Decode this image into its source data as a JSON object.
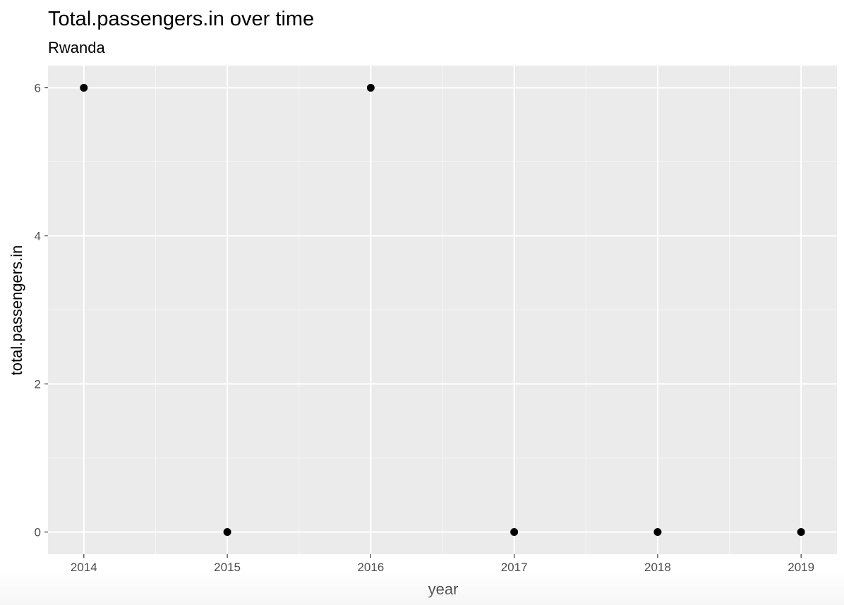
{
  "chart_data": {
    "type": "scatter",
    "title": "Total.passengers.in over time",
    "subtitle": "Rwanda",
    "xlabel": "year",
    "ylabel": "total.passengers.in",
    "x": [
      2014,
      2015,
      2016,
      2017,
      2018,
      2019
    ],
    "y": [
      6,
      0,
      6,
      0,
      0,
      0
    ],
    "xlim": [
      2013.75,
      2019.25
    ],
    "ylim": [
      -0.3,
      6.3
    ],
    "xticks": [
      2014,
      2015,
      2016,
      2017,
      2018,
      2019
    ],
    "xtick_labels": [
      "2014",
      "2015",
      "2016",
      "2017",
      "2018",
      "2019"
    ],
    "yticks": [
      0,
      2,
      4,
      6
    ],
    "ytick_labels": [
      "0",
      "2",
      "4",
      "6"
    ],
    "grid": true,
    "legend": "none",
    "colors": {
      "panel_background": "#ebebeb",
      "grid_major": "#ffffff",
      "grid_minor": "#f5f5f5",
      "point": "#000000",
      "tick": "#333333"
    }
  }
}
